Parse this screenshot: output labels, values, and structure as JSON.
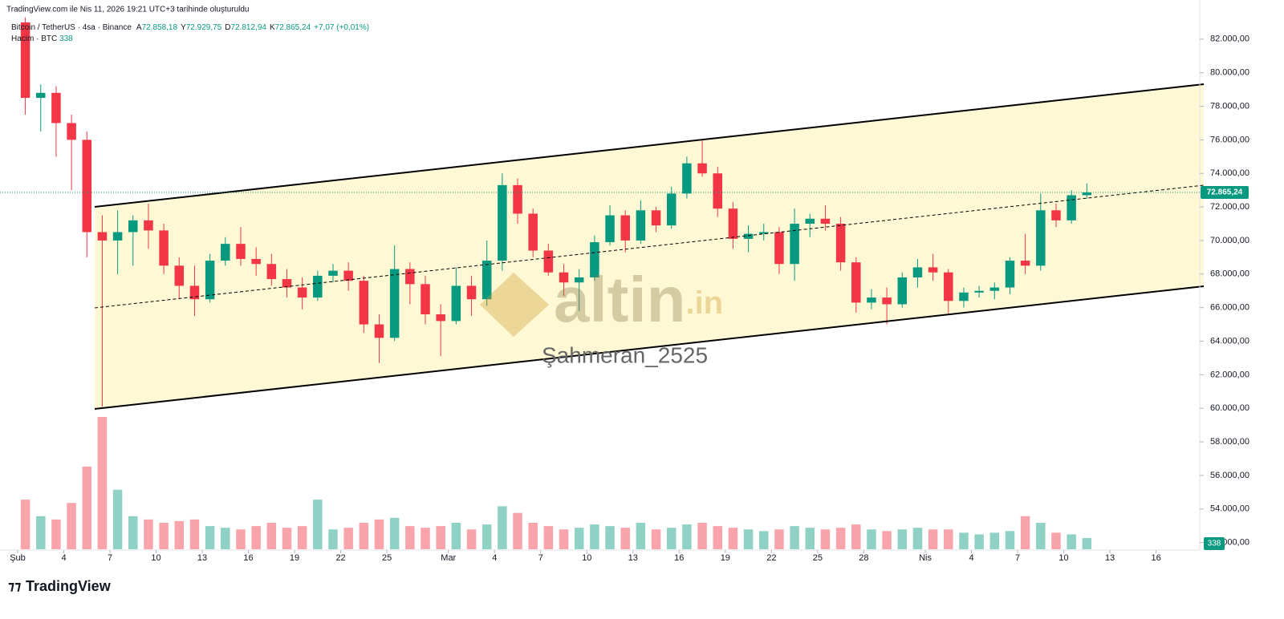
{
  "header": {
    "created": "TradingView.com ile Nis 11, 2026 19:21 UTC+3 tarihinde oluşturuldu",
    "symbol": "Bitcoin / TetherUS · 4sa · Binance",
    "ohlc": [
      {
        "key": "A",
        "value": "72.858,18"
      },
      {
        "key": "Y",
        "value": "72.929,75"
      },
      {
        "key": "D",
        "value": "72.812,94"
      },
      {
        "key": "K",
        "value": "72.865,24"
      }
    ],
    "change": "+7,07 (+0,01%)",
    "volume_title": "Hacim · BTC",
    "volume_value": "338"
  },
  "watermark": {
    "logo": "altin",
    "logo_suffix": ".in",
    "author": "Şahmeran_2525"
  },
  "footer": {
    "brand": "TradingView"
  },
  "chart_data": {
    "type": "candlestick",
    "x": [
      "2026-02-01",
      "2026-02-02",
      "2026-02-03",
      "2026-02-04",
      "2026-02-05",
      "2026-02-06",
      "2026-02-07",
      "2026-02-08",
      "2026-02-09",
      "2026-02-10",
      "2026-02-11",
      "2026-02-12",
      "2026-02-13",
      "2026-02-14",
      "2026-02-15",
      "2026-02-16",
      "2026-02-17",
      "2026-02-18",
      "2026-02-19",
      "2026-02-20",
      "2026-02-21",
      "2026-02-22",
      "2026-02-23",
      "2026-02-24",
      "2026-02-25",
      "2026-02-26",
      "2026-02-27",
      "2026-02-28",
      "2026-03-01",
      "2026-03-02",
      "2026-03-03",
      "2026-03-04",
      "2026-03-05",
      "2026-03-06",
      "2026-03-07",
      "2026-03-08",
      "2026-03-09",
      "2026-03-10",
      "2026-03-11",
      "2026-03-12",
      "2026-03-13",
      "2026-03-14",
      "2026-03-15",
      "2026-03-16",
      "2026-03-17",
      "2026-03-18",
      "2026-03-19",
      "2026-03-20",
      "2026-03-21",
      "2026-03-22",
      "2026-03-23",
      "2026-03-24",
      "2026-03-25",
      "2026-03-26",
      "2026-03-27",
      "2026-03-28",
      "2026-03-29",
      "2026-03-30",
      "2026-03-31",
      "2026-04-01",
      "2026-04-02",
      "2026-04-03",
      "2026-04-04",
      "2026-04-05",
      "2026-04-06",
      "2026-04-07",
      "2026-04-08",
      "2026-04-09",
      "2026-04-10",
      "2026-04-11"
    ],
    "open": [
      83000,
      78500,
      78800,
      77000,
      76000,
      70500,
      70000,
      70500,
      71200,
      70600,
      68500,
      67300,
      66500,
      68800,
      69800,
      68900,
      68600,
      67700,
      67200,
      66600,
      67900,
      68200,
      67600,
      65000,
      64200,
      68300,
      67400,
      65600,
      65200,
      67300,
      66500,
      68800,
      73300,
      71600,
      69400,
      68100,
      67500,
      67800,
      69900,
      71500,
      70000,
      71800,
      70900,
      72800,
      74600,
      74000,
      71900,
      70100,
      70400,
      70500,
      68600,
      71000,
      71300,
      71000,
      68700,
      66300,
      66600,
      66200,
      67800,
      68400,
      68100,
      66400,
      66900,
      67000,
      67200,
      68800,
      68500,
      71800,
      71200,
      72700
    ],
    "high": [
      83300,
      79300,
      79200,
      77500,
      76500,
      71500,
      71800,
      71500,
      72200,
      71000,
      69000,
      68500,
      69200,
      70200,
      70800,
      69600,
      69200,
      68300,
      67800,
      68200,
      68600,
      68700,
      67900,
      65600,
      69700,
      68700,
      67900,
      66200,
      68400,
      67900,
      70000,
      74000,
      73700,
      71900,
      69800,
      68600,
      68300,
      70300,
      72100,
      71800,
      72400,
      72000,
      73200,
      75000,
      76000,
      74400,
      72300,
      70900,
      71000,
      70800,
      71900,
      71600,
      72100,
      71400,
      69000,
      67100,
      67200,
      68100,
      68900,
      69200,
      68300,
      67200,
      67300,
      67500,
      69000,
      70400,
      72800,
      72200,
      73000,
      73400
    ],
    "low": [
      77500,
      76500,
      75000,
      73000,
      69000,
      60100,
      68000,
      68500,
      69500,
      68000,
      66500,
      65500,
      66300,
      68500,
      68500,
      67900,
      67300,
      66600,
      65900,
      66400,
      67500,
      67000,
      64500,
      62700,
      64000,
      66200,
      65000,
      63100,
      65000,
      65500,
      66100,
      68200,
      71000,
      69000,
      67900,
      66700,
      65800,
      67600,
      69700,
      69300,
      69800,
      70500,
      70700,
      72500,
      73800,
      71400,
      69500,
      69300,
      70000,
      68000,
      67600,
      70200,
      70600,
      68200,
      65700,
      65900,
      65000,
      66000,
      67200,
      67600,
      65600,
      66000,
      66600,
      66500,
      66800,
      68000,
      68200,
      70800,
      71000,
      72500
    ],
    "close": [
      78500,
      78800,
      77000,
      76000,
      70500,
      70000,
      70500,
      71200,
      70600,
      68500,
      67300,
      66500,
      68800,
      69800,
      68900,
      68600,
      67700,
      67200,
      66600,
      67900,
      68200,
      67600,
      65000,
      64200,
      68300,
      67400,
      65600,
      65200,
      67300,
      66500,
      68800,
      73300,
      71600,
      69400,
      68100,
      67500,
      67800,
      69900,
      71500,
      70000,
      71800,
      70900,
      72800,
      74600,
      74000,
      71900,
      70100,
      70400,
      70500,
      68600,
      71000,
      71300,
      71000,
      68700,
      66300,
      66600,
      66200,
      67800,
      68400,
      68100,
      66400,
      66900,
      67000,
      67200,
      68800,
      68500,
      71800,
      71200,
      72700,
      72865
    ],
    "volume": [
      1500,
      1000,
      900,
      1400,
      2500,
      4000,
      1800,
      1000,
      900,
      800,
      850,
      900,
      700,
      650,
      600,
      700,
      800,
      650,
      700,
      1500,
      600,
      650,
      800,
      900,
      950,
      700,
      650,
      700,
      800,
      600,
      750,
      1300,
      1100,
      800,
      700,
      600,
      650,
      750,
      700,
      650,
      800,
      600,
      650,
      750,
      800,
      700,
      650,
      600,
      550,
      600,
      700,
      650,
      600,
      650,
      750,
      600,
      550,
      600,
      650,
      600,
      600,
      500,
      450,
      500,
      550,
      1000,
      800,
      500,
      450,
      338
    ],
    "ylim": [
      51600,
      82900
    ],
    "yticks": [
      {
        "value": 52000,
        "label": "52.000,00"
      },
      {
        "value": 54000,
        "label": "54.000,00"
      },
      {
        "value": 56000,
        "label": "56.000,00"
      },
      {
        "value": 58000,
        "label": "58.000,00"
      },
      {
        "value": 60000,
        "label": "60.000,00"
      },
      {
        "value": 62000,
        "label": "62.000,00"
      },
      {
        "value": 64000,
        "label": "64.000,00"
      },
      {
        "value": 66000,
        "label": "66.000,00"
      },
      {
        "value": 68000,
        "label": "68.000,00"
      },
      {
        "value": 70000,
        "label": "70.000,00"
      },
      {
        "value": 72000,
        "label": "72.000,00"
      },
      {
        "value": 74000,
        "label": "74.000,00"
      },
      {
        "value": 76000,
        "label": "76.000,00"
      },
      {
        "value": 78000,
        "label": "78.000,00"
      },
      {
        "value": 80000,
        "label": "80.000,00"
      },
      {
        "value": 82000,
        "label": "82.000,00"
      }
    ],
    "xticks": [
      {
        "value": "2026-02-01",
        "label": "Şub"
      },
      {
        "value": "2026-02-04",
        "label": "4"
      },
      {
        "value": "2026-02-07",
        "label": "7"
      },
      {
        "value": "2026-02-10",
        "label": "10"
      },
      {
        "value": "2026-02-13",
        "label": "13"
      },
      {
        "value": "2026-02-16",
        "label": "16"
      },
      {
        "value": "2026-02-19",
        "label": "19"
      },
      {
        "value": "2026-02-22",
        "label": "22"
      },
      {
        "value": "2026-02-25",
        "label": "25"
      },
      {
        "value": "2026-03-01",
        "label": "Mar"
      },
      {
        "value": "2026-03-04",
        "label": "4"
      },
      {
        "value": "2026-03-07",
        "label": "7"
      },
      {
        "value": "2026-03-10",
        "label": "10"
      },
      {
        "value": "2026-03-13",
        "label": "13"
      },
      {
        "value": "2026-03-16",
        "label": "16"
      },
      {
        "value": "2026-03-19",
        "label": "19"
      },
      {
        "value": "2026-03-22",
        "label": "22"
      },
      {
        "value": "2026-03-25",
        "label": "25"
      },
      {
        "value": "2026-03-28",
        "label": "28"
      },
      {
        "value": "2026-04-01",
        "label": "Nis"
      },
      {
        "value": "2026-04-04",
        "label": "4"
      },
      {
        "value": "2026-04-07",
        "label": "7"
      },
      {
        "value": "2026-04-10",
        "label": "10"
      },
      {
        "value": "2026-04-13",
        "label": "13"
      },
      {
        "value": "2026-04-16",
        "label": "16"
      }
    ],
    "last_price": {
      "value": 72865.24,
      "label": "72.865,24"
    },
    "last_volume": 338,
    "up_color": "#089981",
    "down_color": "#f23645"
  }
}
